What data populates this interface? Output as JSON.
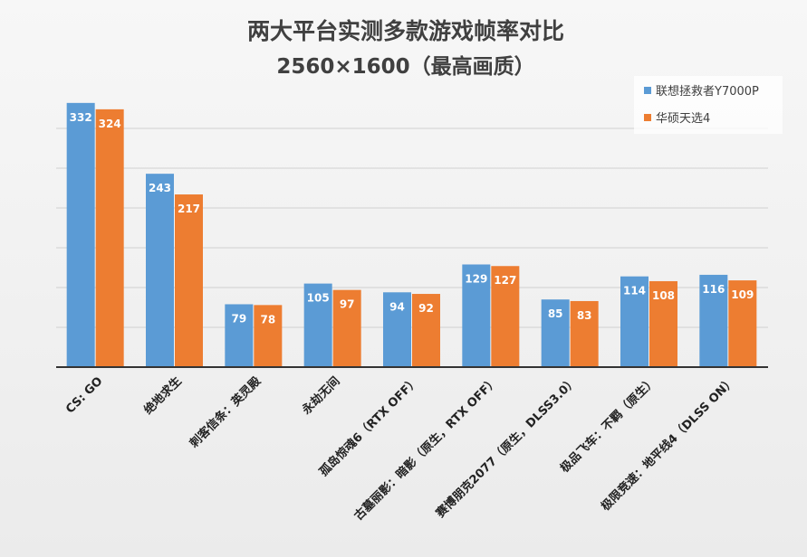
{
  "chart_data": {
    "type": "bar",
    "title": "两大平台实测多款游戏帧率对比",
    "subtitle": "2560×1600（最高画质）",
    "categories": [
      "CS: GO",
      "绝地求生",
      "刺客信条：英灵殿",
      "永劫无间",
      "孤岛惊魂6（RTX OFF）",
      "古墓丽影：暗影（原生，RTX OFF）",
      "赛博朋克2077（原生，DLSS3.0）",
      "极品飞车：不羁（原生）",
      "极限竞速：地平线4（DLSS ON）"
    ],
    "series": [
      {
        "name": "联想拯救者Y7000P",
        "color": "#5b9bd5",
        "values": [
          332,
          243,
          79,
          105,
          94,
          129,
          85,
          114,
          116
        ]
      },
      {
        "name": "华硕天选4",
        "color": "#ed7d31",
        "values": [
          324,
          217,
          78,
          97,
          92,
          127,
          83,
          108,
          109
        ]
      }
    ],
    "ylim": [
      0,
      350
    ],
    "y_grid_step": 50,
    "grid": true,
    "legend_position": "top-right",
    "data_labels": true
  }
}
